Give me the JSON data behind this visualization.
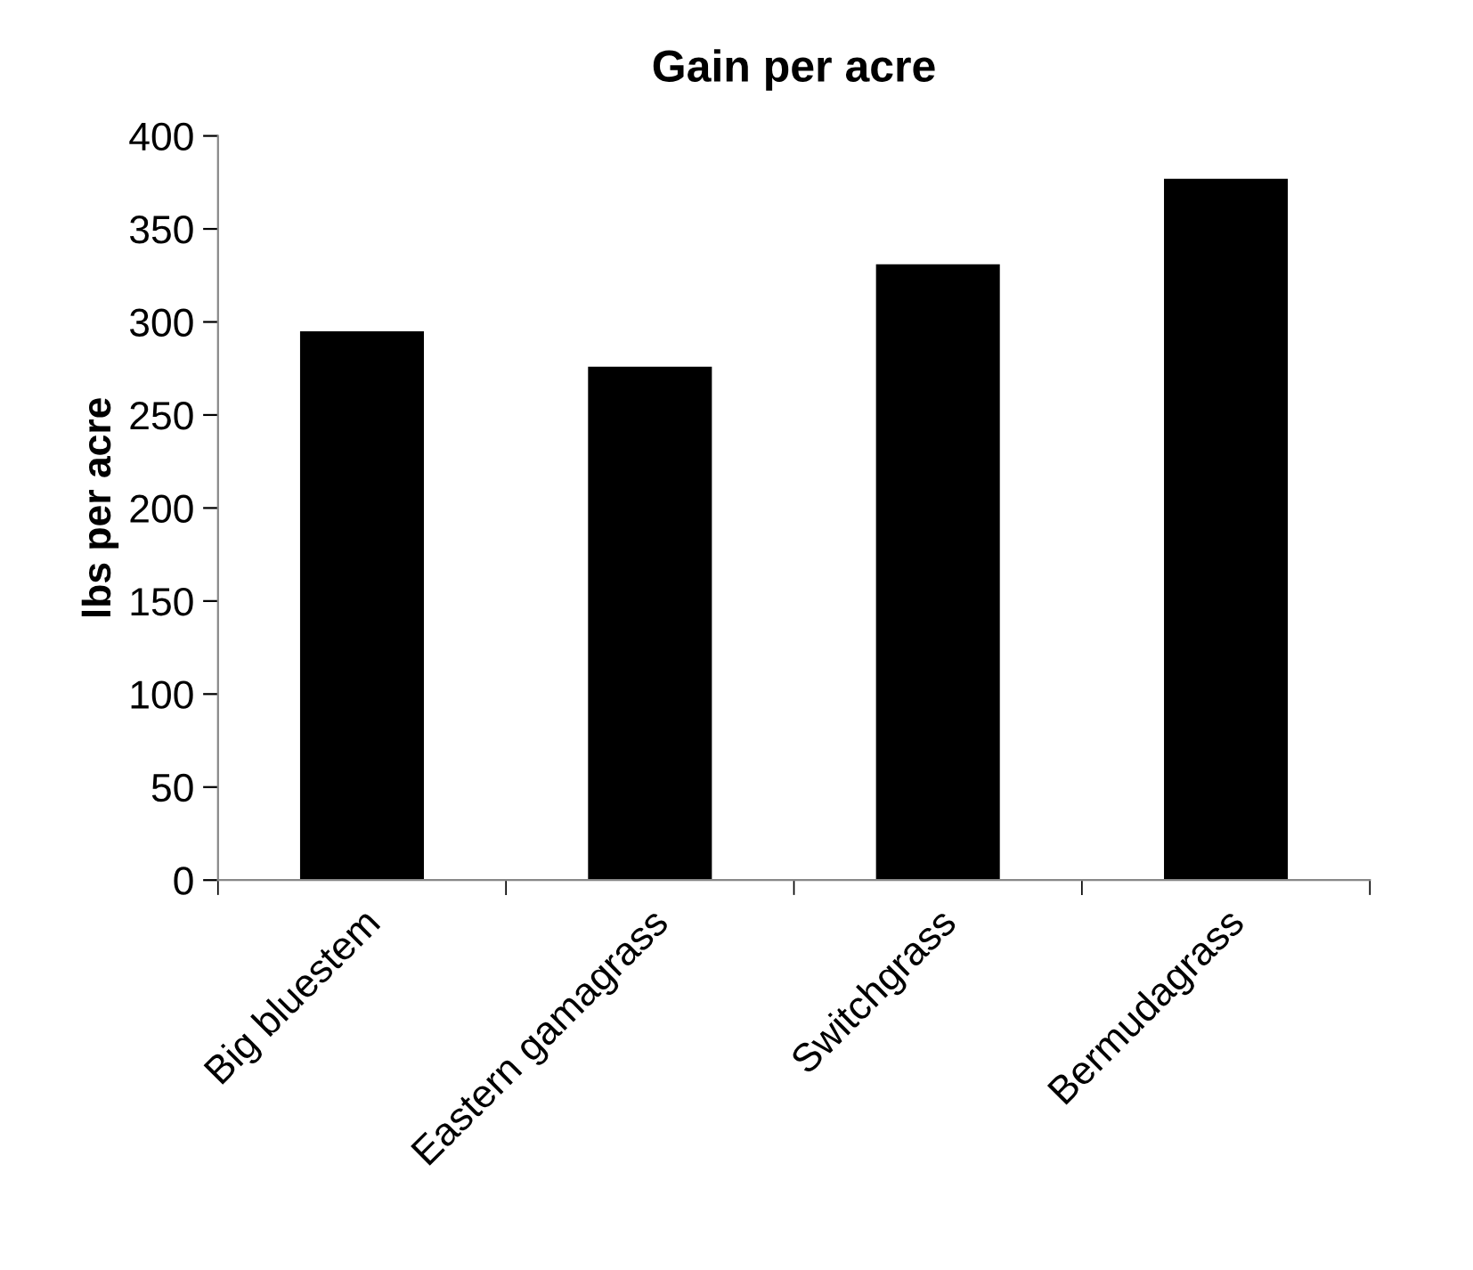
{
  "chart_data": {
    "type": "bar",
    "title": "Gain per acre",
    "ylabel": "lbs per acre",
    "categories": [
      "Big bluestem",
      "Eastern gamagrass",
      "Switchgrass",
      "Bermudagrass"
    ],
    "values": [
      295,
      276,
      331,
      377
    ],
    "color": "#000000",
    "ylim": [
      0,
      400
    ],
    "yticks": [
      0,
      50,
      100,
      150,
      200,
      250,
      300,
      350,
      400
    ],
    "grid": false,
    "legend": false
  }
}
